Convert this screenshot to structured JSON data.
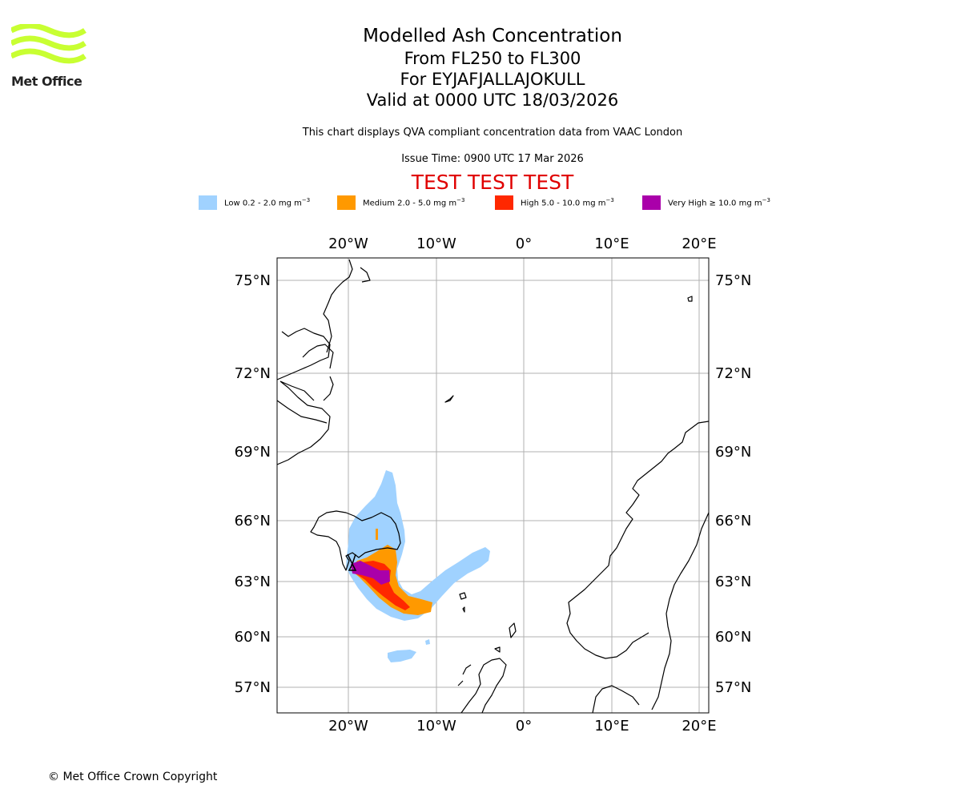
{
  "logo": {
    "text": "Met Office",
    "color": "#c8ff32"
  },
  "title": {
    "main": "Modelled Ash Concentration",
    "levels": "From FL250 to FL300",
    "volcano": "For EYJAFJALLAJOKULL",
    "valid": "Valid at 0000 UTC 18/03/2026"
  },
  "description": "This chart displays QVA compliant concentration data from VAAC London",
  "issue_time": "Issue Time: 0900 UTC 17 Mar 2026",
  "test_banner": "TEST TEST TEST",
  "legend": [
    {
      "label": "Low 0.2 - 2.0 mg m",
      "sup": "−3",
      "color": "#a0d2ff"
    },
    {
      "label": "Medium 2.0 - 5.0 mg m",
      "sup": "−3",
      "color": "#ff9900"
    },
    {
      "label": "High 5.0 - 10.0 mg m",
      "sup": "−3",
      "color": "#ff2800"
    },
    {
      "label": "Very High ≥ 10.0 mg m",
      "sup": "−3",
      "color": "#aa00aa"
    }
  ],
  "map": {
    "lon_labels": [
      "20°W",
      "10°W",
      "0°",
      "10°E",
      "20°E"
    ],
    "lat_labels": [
      "75°N",
      "72°N",
      "69°N",
      "66°N",
      "63°N",
      "60°N",
      "57°N"
    ],
    "grid": true,
    "grid_color": "#b0b0b0"
  },
  "copyright": "© Met Office Crown Copyright"
}
